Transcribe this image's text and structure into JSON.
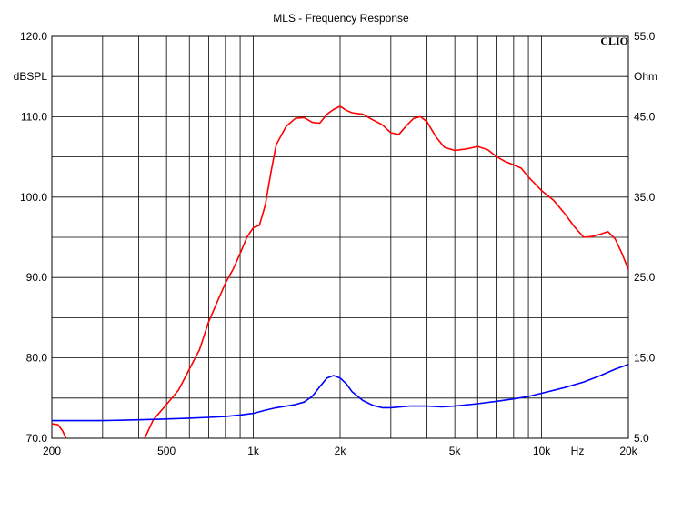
{
  "chart_data": {
    "type": "line",
    "title": "MLS - Frequency Response",
    "brand": "CLIO",
    "xscale": "log",
    "xlim": [
      200,
      20000
    ],
    "ylim": [
      70,
      120
    ],
    "y2lim": [
      5,
      55
    ],
    "ylabel": "dBSPL",
    "y2label": "Ohm",
    "xunit": "Hz",
    "grid": true,
    "x_ticks": [
      {
        "value": 200,
        "label": "200"
      },
      {
        "value": 500,
        "label": "500"
      },
      {
        "value": 1000,
        "label": "1k"
      },
      {
        "value": 2000,
        "label": "2k"
      },
      {
        "value": 5000,
        "label": "5k"
      },
      {
        "value": 10000,
        "label": "10k"
      },
      {
        "value": 20000,
        "label": "20k"
      }
    ],
    "y_ticks": [
      {
        "value": 120,
        "label": "120.0"
      },
      {
        "value": 110,
        "label": "110.0"
      },
      {
        "value": 100,
        "label": "100.0"
      },
      {
        "value": 90,
        "label": "90.0"
      },
      {
        "value": 80,
        "label": "80.0"
      },
      {
        "value": 70,
        "label": "70.0"
      }
    ],
    "y2_ticks": [
      {
        "value": 55,
        "label": "55.0"
      },
      {
        "value": 45,
        "label": "45.0"
      },
      {
        "value": 35,
        "label": "35.0"
      },
      {
        "value": 25,
        "label": "25.0"
      },
      {
        "value": 15,
        "label": "15.0"
      },
      {
        "value": 5,
        "label": "5.0"
      }
    ],
    "series": [
      {
        "color": "#ff0000",
        "axis": "left",
        "points": [
          [
            420,
            70.0
          ],
          [
            450,
            72.3
          ],
          [
            500,
            74.2
          ],
          [
            550,
            76.0
          ],
          [
            600,
            78.6
          ],
          [
            650,
            81.0
          ],
          [
            700,
            84.5
          ],
          [
            750,
            87.0
          ],
          [
            800,
            89.3
          ],
          [
            850,
            91.0
          ],
          [
            900,
            93.0
          ],
          [
            950,
            95.0
          ],
          [
            1000,
            96.2
          ],
          [
            1050,
            96.5
          ],
          [
            1100,
            99.0
          ],
          [
            1150,
            103.0
          ],
          [
            1200,
            106.5
          ],
          [
            1300,
            108.8
          ],
          [
            1400,
            109.8
          ],
          [
            1500,
            109.9
          ],
          [
            1600,
            109.3
          ],
          [
            1700,
            109.2
          ],
          [
            1800,
            110.3
          ],
          [
            1900,
            110.9
          ],
          [
            2000,
            111.3
          ],
          [
            2100,
            110.8
          ],
          [
            2200,
            110.5
          ],
          [
            2400,
            110.3
          ],
          [
            2600,
            109.6
          ],
          [
            2800,
            109.0
          ],
          [
            3000,
            108.0
          ],
          [
            3200,
            107.8
          ],
          [
            3400,
            108.9
          ],
          [
            3600,
            109.8
          ],
          [
            3800,
            110.0
          ],
          [
            4000,
            109.4
          ],
          [
            4300,
            107.5
          ],
          [
            4600,
            106.2
          ],
          [
            5000,
            105.8
          ],
          [
            5500,
            106.0
          ],
          [
            6000,
            106.3
          ],
          [
            6500,
            105.9
          ],
          [
            7000,
            105.0
          ],
          [
            7500,
            104.4
          ],
          [
            8000,
            104.0
          ],
          [
            8500,
            103.6
          ],
          [
            9000,
            102.5
          ],
          [
            10000,
            100.8
          ],
          [
            11000,
            99.6
          ],
          [
            12000,
            98.0
          ],
          [
            13000,
            96.3
          ],
          [
            14000,
            95.0
          ],
          [
            15000,
            95.1
          ],
          [
            16000,
            95.4
          ],
          [
            17000,
            95.7
          ],
          [
            18000,
            94.8
          ],
          [
            19000,
            93.0
          ],
          [
            20000,
            91.0
          ]
        ]
      },
      {
        "color": "#0000ff",
        "axis": "right",
        "points": [
          [
            200,
            7.2
          ],
          [
            300,
            7.2
          ],
          [
            400,
            7.3
          ],
          [
            500,
            7.4
          ],
          [
            600,
            7.5
          ],
          [
            700,
            7.6
          ],
          [
            800,
            7.7
          ],
          [
            900,
            7.9
          ],
          [
            1000,
            8.1
          ],
          [
            1100,
            8.5
          ],
          [
            1200,
            8.8
          ],
          [
            1400,
            9.2
          ],
          [
            1500,
            9.5
          ],
          [
            1600,
            10.2
          ],
          [
            1700,
            11.4
          ],
          [
            1800,
            12.5
          ],
          [
            1900,
            12.8
          ],
          [
            2000,
            12.5
          ],
          [
            2100,
            11.8
          ],
          [
            2200,
            10.8
          ],
          [
            2400,
            9.7
          ],
          [
            2600,
            9.1
          ],
          [
            2800,
            8.8
          ],
          [
            3000,
            8.8
          ],
          [
            3500,
            9.0
          ],
          [
            4000,
            9.0
          ],
          [
            4500,
            8.9
          ],
          [
            5000,
            9.0
          ],
          [
            6000,
            9.3
          ],
          [
            7000,
            9.6
          ],
          [
            8000,
            9.9
          ],
          [
            9000,
            10.2
          ],
          [
            10000,
            10.6
          ],
          [
            12000,
            11.3
          ],
          [
            14000,
            12.0
          ],
          [
            16000,
            12.8
          ],
          [
            18000,
            13.6
          ],
          [
            20000,
            14.2
          ]
        ]
      },
      {
        "color": "#ff0000",
        "axis": "left",
        "points": [
          [
            200,
            71.8
          ],
          [
            210,
            71.7
          ],
          [
            218,
            70.9
          ],
          [
            224,
            70.0
          ]
        ]
      }
    ]
  }
}
